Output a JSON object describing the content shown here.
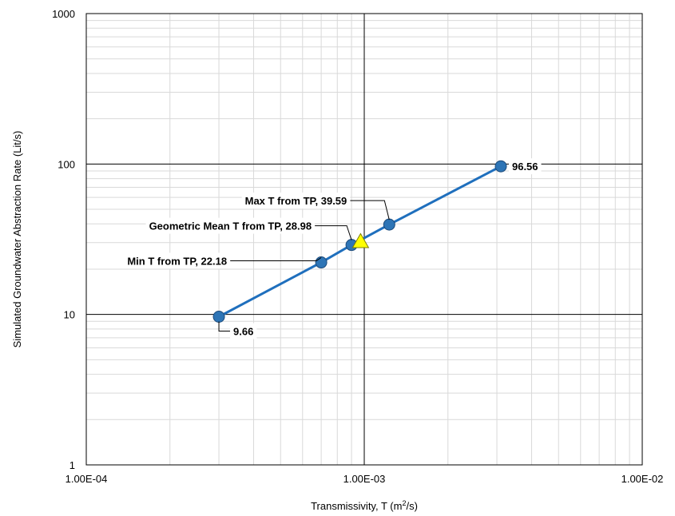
{
  "chart_data": {
    "type": "scatter",
    "title": "",
    "xlabel_main": "Transmissivity, T (m",
    "xlabel_sup": "2",
    "xlabel_tail": "/s)",
    "ylabel": "Simulated Groundwater Abstraction Rate (Lit/s)",
    "x_scale": "log",
    "y_scale": "log",
    "xlim": [
      0.0001,
      0.01
    ],
    "ylim": [
      1,
      1000
    ],
    "x_ticks": [
      {
        "value": 0.0001,
        "label": "1.00E-04"
      },
      {
        "value": 0.001,
        "label": "1.00E-03"
      },
      {
        "value": 0.01,
        "label": "1.00E-02"
      }
    ],
    "y_ticks": [
      {
        "value": 1,
        "label": "1"
      },
      {
        "value": 10,
        "label": "10"
      },
      {
        "value": 100,
        "label": "100"
      },
      {
        "value": 1000,
        "label": "1000"
      }
    ],
    "grid": true,
    "legend": "none",
    "series": [
      {
        "type": "line-markers",
        "color": "#1f6fbd",
        "marker_fill": "#2e75b6",
        "marker_edge": "#1c4a7a",
        "points": [
          {
            "x": 0.0003,
            "y": 9.66,
            "label": "9.66"
          },
          {
            "x": 0.0007,
            "y": 22.18,
            "label": "Min T from TP, 22.18"
          },
          {
            "x": 0.0009,
            "y": 28.98,
            "label": "Geometric Mean T from TP, 28.98"
          },
          {
            "x": 0.00123,
            "y": 39.59,
            "label": "Max T from TP, 39.59"
          },
          {
            "x": 0.0031,
            "y": 96.56,
            "label": "96.56"
          }
        ]
      },
      {
        "type": "triangle-marker",
        "color": "#ffff00",
        "edge": "#7f7f00",
        "points": [
          {
            "x": 0.00097,
            "y": 30.5
          }
        ]
      }
    ]
  }
}
